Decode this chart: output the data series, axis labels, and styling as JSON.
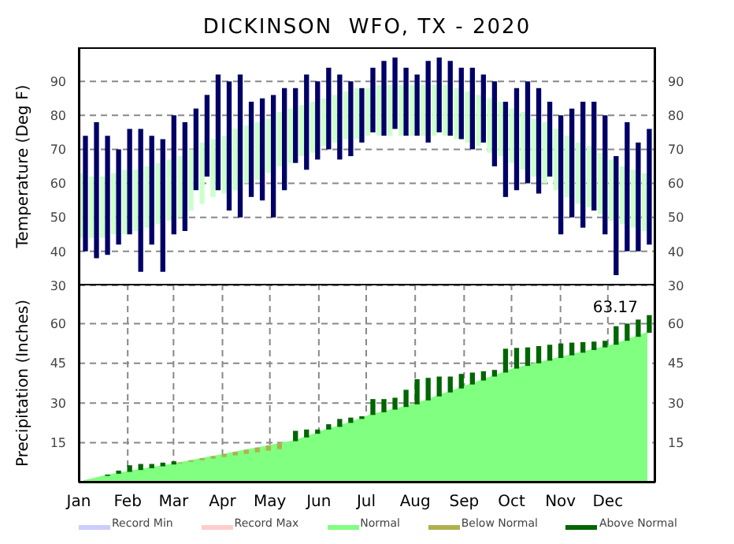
{
  "chart_data": [
    {
      "type": "bar",
      "title": "DICKINSON  WFO, TX - 2020",
      "ylabel": "Temperature (Deg F)",
      "x": [
        "2020-01-04",
        "2020-01-11",
        "2020-01-18",
        "2020-01-25",
        "2020-02-01",
        "2020-02-08",
        "2020-02-15",
        "2020-02-22",
        "2020-02-29",
        "2020-03-07",
        "2020-03-14",
        "2020-03-21",
        "2020-03-28",
        "2020-04-04",
        "2020-04-11",
        "2020-04-18",
        "2020-04-25",
        "2020-05-02",
        "2020-05-09",
        "2020-05-16",
        "2020-05-23",
        "2020-05-30",
        "2020-06-06",
        "2020-06-13",
        "2020-06-20",
        "2020-06-27",
        "2020-07-04",
        "2020-07-11",
        "2020-07-18",
        "2020-07-25",
        "2020-08-01",
        "2020-08-08",
        "2020-08-15",
        "2020-08-22",
        "2020-08-29",
        "2020-09-05",
        "2020-09-12",
        "2020-09-19",
        "2020-09-26",
        "2020-10-03",
        "2020-10-10",
        "2020-10-17",
        "2020-10-24",
        "2020-10-31",
        "2020-11-07",
        "2020-11-14",
        "2020-11-21",
        "2020-11-28",
        "2020-12-05",
        "2020-12-12",
        "2020-12-19",
        "2020-12-26"
      ],
      "xlim": [
        "2020-01-01",
        "2020-12-31"
      ],
      "xticks": [
        {
          "value": "2020-01-01",
          "label": null
        },
        {
          "value": "2020-02-01",
          "label": null
        },
        {
          "value": "2020-03-01",
          "label": null
        },
        {
          "value": "2020-04-01",
          "label": null
        },
        {
          "value": "2020-05-01",
          "label": null
        },
        {
          "value": "2020-06-01",
          "label": null
        },
        {
          "value": "2020-07-01",
          "label": null
        },
        {
          "value": "2020-08-01",
          "label": null
        },
        {
          "value": "2020-09-01",
          "label": null
        },
        {
          "value": "2020-10-01",
          "label": null
        },
        {
          "value": "2020-11-01",
          "label": null
        },
        {
          "value": "2020-12-01",
          "label": null
        }
      ],
      "ylim": [
        30,
        100
      ],
      "yticks": [
        30,
        40,
        50,
        60,
        70,
        80,
        90
      ],
      "y2lim": [
        30,
        100
      ],
      "y2ticks": [
        30,
        40,
        50,
        60,
        70,
        80,
        90
      ],
      "grid": true,
      "tick_labels": "y",
      "series": [
        {
          "color": "#ccffcc",
          "base": [
            44,
            44,
            44,
            45,
            45,
            46,
            47,
            48,
            49,
            50,
            52,
            54,
            56,
            57,
            58,
            60,
            61,
            63,
            65,
            66,
            68,
            69,
            71,
            72,
            73,
            73,
            74,
            74,
            74,
            74,
            74,
            74,
            74,
            74,
            73,
            72,
            71,
            69,
            68,
            66,
            64,
            62,
            60,
            58,
            56,
            54,
            53,
            51,
            49,
            48,
            47,
            46
          ],
          "values": [
            19,
            18,
            18,
            18,
            19,
            18,
            18,
            18,
            18,
            18,
            18,
            18,
            17,
            17,
            18,
            17,
            17,
            16,
            16,
            16,
            15,
            15,
            14,
            14,
            14,
            15,
            14,
            15,
            15,
            15,
            15,
            15,
            15,
            15,
            15,
            15,
            15,
            16,
            16,
            16,
            17,
            17,
            18,
            18,
            18,
            18,
            18,
            18,
            18,
            17,
            17,
            17
          ]
        },
        {
          "color": "#000066",
          "base": [
            40,
            38,
            39,
            42,
            45,
            34,
            42,
            34,
            45,
            46,
            58,
            62,
            58,
            52,
            50,
            56,
            55,
            50,
            58,
            66,
            64,
            67,
            70,
            67,
            68,
            72,
            75,
            74,
            76,
            74,
            74,
            72,
            75,
            74,
            73,
            70,
            72,
            65,
            56,
            58,
            60,
            57,
            62,
            45,
            50,
            47,
            52,
            45,
            33,
            40,
            40,
            42
          ],
          "values": [
            34,
            40,
            35,
            28,
            31,
            42,
            32,
            39,
            35,
            32,
            24,
            24,
            34,
            38,
            42,
            28,
            30,
            36,
            30,
            22,
            28,
            23,
            24,
            25,
            22,
            16,
            19,
            22,
            21,
            20,
            18,
            24,
            22,
            22,
            21,
            24,
            20,
            25,
            28,
            30,
            30,
            31,
            22,
            35,
            32,
            37,
            32,
            35,
            35,
            38,
            32,
            34
          ]
        }
      ]
    },
    {
      "type": "bar",
      "ylabel": "Precipitation (Inches)",
      "x": [
        "2020-01-04",
        "2020-01-11",
        "2020-01-18",
        "2020-01-25",
        "2020-02-01",
        "2020-02-08",
        "2020-02-15",
        "2020-02-22",
        "2020-02-29",
        "2020-03-07",
        "2020-03-14",
        "2020-03-21",
        "2020-03-28",
        "2020-04-04",
        "2020-04-11",
        "2020-04-18",
        "2020-04-25",
        "2020-05-02",
        "2020-05-09",
        "2020-05-16",
        "2020-05-23",
        "2020-05-30",
        "2020-06-06",
        "2020-06-13",
        "2020-06-20",
        "2020-06-27",
        "2020-07-04",
        "2020-07-11",
        "2020-07-18",
        "2020-07-25",
        "2020-08-01",
        "2020-08-08",
        "2020-08-15",
        "2020-08-22",
        "2020-08-29",
        "2020-09-05",
        "2020-09-12",
        "2020-09-19",
        "2020-09-26",
        "2020-10-03",
        "2020-10-10",
        "2020-10-17",
        "2020-10-24",
        "2020-10-31",
        "2020-11-07",
        "2020-11-14",
        "2020-11-21",
        "2020-11-28",
        "2020-12-05",
        "2020-12-12",
        "2020-12-19",
        "2020-12-26"
      ],
      "xlim": [
        "2020-01-01",
        "2020-12-31"
      ],
      "xticks": [
        {
          "value": "2020-01-01",
          "label": "Jan"
        },
        {
          "value": "2020-02-01",
          "label": "Feb"
        },
        {
          "value": "2020-03-01",
          "label": "Mar"
        },
        {
          "value": "2020-04-01",
          "label": "Apr"
        },
        {
          "value": "2020-05-01",
          "label": "May"
        },
        {
          "value": "2020-06-01",
          "label": "Jun"
        },
        {
          "value": "2020-07-01",
          "label": "Jul"
        },
        {
          "value": "2020-08-01",
          "label": "Aug"
        },
        {
          "value": "2020-09-01",
          "label": "Sep"
        },
        {
          "value": "2020-10-01",
          "label": "Oct"
        },
        {
          "value": "2020-11-01",
          "label": "Nov"
        },
        {
          "value": "2020-12-01",
          "label": "Dec"
        }
      ],
      "ylim": [
        0,
        75
      ],
      "yticks": [
        15,
        30,
        45,
        60
      ],
      "y2lim": [
        0,
        75
      ],
      "y2ticks": [
        15,
        30,
        45,
        60
      ],
      "grid": true,
      "legend": "bottom",
      "annotations": [
        {
          "text": "63.17",
          "x": "2020-12-26",
          "y": 63.17
        }
      ],
      "series": [
        {
          "name": "Record Min",
          "type": "line",
          "color": "#ccccff",
          "values": [
            null,
            null,
            null,
            null,
            null,
            null,
            null,
            null,
            null,
            null,
            null,
            null,
            null,
            null,
            null,
            null,
            null,
            null,
            null,
            null,
            null,
            null,
            null,
            null,
            null,
            null,
            null,
            null,
            null,
            null,
            null,
            null,
            null,
            null,
            null,
            null,
            null,
            null,
            null,
            null,
            null,
            null,
            null,
            null,
            null,
            null,
            null,
            null,
            null,
            null,
            null,
            null
          ]
        },
        {
          "name": "Record Max",
          "type": "line",
          "color": "#ffcccc",
          "values": [
            null,
            null,
            null,
            null,
            null,
            null,
            null,
            null,
            null,
            null,
            null,
            null,
            null,
            null,
            null,
            null,
            null,
            null,
            null,
            null,
            null,
            null,
            null,
            null,
            null,
            null,
            null,
            null,
            null,
            null,
            null,
            null,
            null,
            null,
            null,
            null,
            null,
            null,
            null,
            null,
            null,
            null,
            null,
            null,
            null,
            null,
            null,
            null,
            null,
            null,
            null,
            null
          ]
        },
        {
          "name": "Normal",
          "type": "area",
          "color": "#80ff80",
          "values": [
            0.5,
            1.5,
            2.5,
            3.3,
            4.0,
            4.7,
            5.4,
            6.1,
            6.8,
            7.6,
            8.4,
            9.2,
            10.0,
            10.8,
            11.6,
            12.4,
            13.2,
            14.0,
            14.8,
            15.6,
            17.0,
            18.4,
            20,
            21,
            22.5,
            24,
            25.5,
            26.5,
            27.5,
            28.5,
            29.5,
            31,
            32.5,
            34,
            35.5,
            37,
            38.5,
            40,
            41.5,
            43,
            44,
            45,
            46,
            47,
            48,
            49,
            50,
            51,
            52,
            53.5,
            55,
            56.5
          ]
        },
        {
          "name": "Below Normal",
          "color": "#b0b050",
          "base": [
            null,
            null,
            null,
            null,
            null,
            null,
            null,
            null,
            null,
            7.2,
            7.8,
            8.4,
            9.0,
            9.6,
            10.2,
            10.8,
            11.4,
            12.0,
            12.6,
            null,
            null,
            null,
            null,
            null,
            null,
            null,
            null,
            null,
            null,
            null,
            null,
            null,
            null,
            null,
            null,
            null,
            null,
            null,
            null,
            null,
            null,
            null,
            null,
            null,
            null,
            null,
            null,
            null,
            null,
            null,
            null,
            null
          ],
          "values": [
            null,
            null,
            null,
            null,
            null,
            null,
            null,
            null,
            null,
            0.4,
            0.6,
            0.8,
            1.0,
            1.2,
            1.4,
            1.6,
            1.8,
            2.0,
            2.2,
            null,
            null,
            null,
            null,
            null,
            null,
            null,
            null,
            null,
            null,
            null,
            null,
            null,
            null,
            null,
            null,
            null,
            null,
            null,
            null,
            null,
            null,
            null,
            null,
            null,
            null,
            null,
            null,
            null,
            null,
            null,
            null,
            null
          ]
        },
        {
          "name": "Above Normal",
          "color": "#006600",
          "base": [
            null,
            null,
            2.5,
            3.3,
            4.0,
            4.7,
            5.4,
            6.1,
            6.8,
            null,
            null,
            null,
            null,
            null,
            null,
            null,
            null,
            null,
            null,
            15.6,
            17.0,
            18.4,
            20,
            21,
            22.5,
            24,
            25.5,
            26.5,
            27.5,
            28.5,
            29.5,
            31,
            32.5,
            34,
            35.5,
            37,
            38.5,
            40,
            41.5,
            43,
            44,
            45,
            46,
            47,
            48,
            49,
            50,
            51,
            52,
            53.5,
            55,
            56.5
          ],
          "values": [
            null,
            null,
            0.5,
            1.2,
            2.5,
            2.3,
            1.6,
            1.4,
            1.2,
            null,
            null,
            null,
            null,
            null,
            null,
            null,
            null,
            null,
            null,
            3.9,
            3.0,
            1.6,
            2,
            3,
            2,
            1,
            6,
            5,
            4.5,
            6.5,
            9.5,
            8.5,
            7.5,
            6,
            5.5,
            4.5,
            3.5,
            2.5,
            9,
            7.8,
            7,
            6.5,
            6,
            5.5,
            4.8,
            4,
            3.2,
            2.5,
            7,
            6.5,
            6.5,
            6.7
          ]
        }
      ]
    }
  ]
}
